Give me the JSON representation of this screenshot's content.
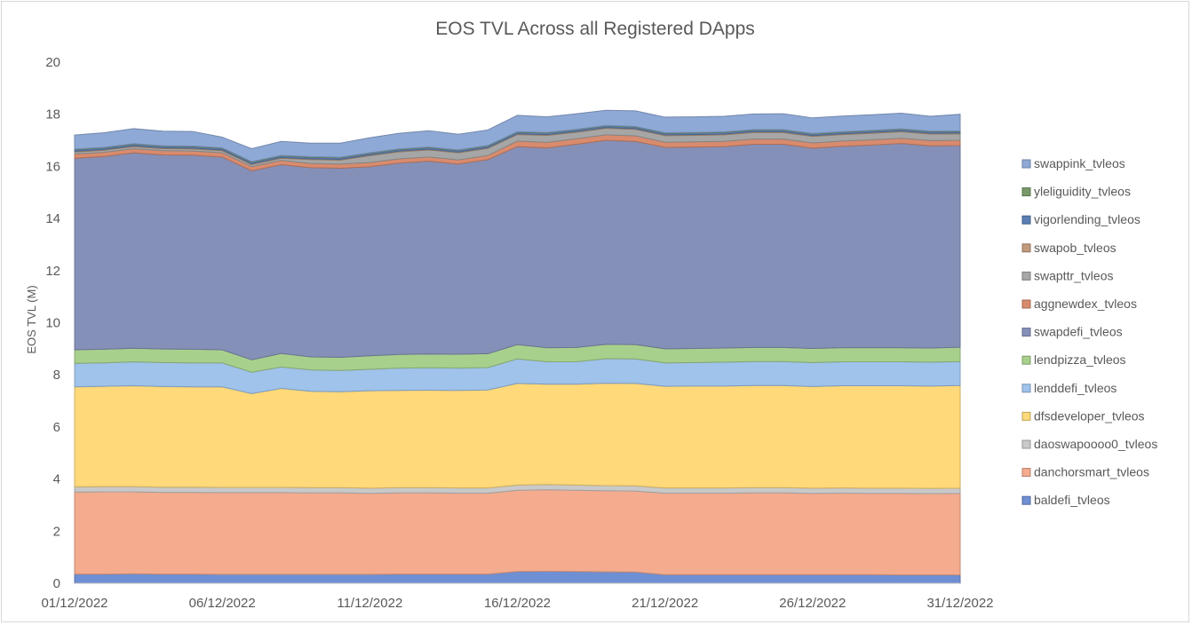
{
  "chart_data": {
    "type": "area",
    "stacked": true,
    "title": "EOS TVL Across all Registered DApps",
    "xlabel": "",
    "ylabel": "EOS TVL (M)",
    "ylim": [
      0,
      20
    ],
    "yticks": [
      0,
      2,
      4,
      6,
      8,
      10,
      12,
      14,
      16,
      18,
      20
    ],
    "x_tick_labels": [
      "01/12/2022",
      "06/12/2022",
      "11/12/2022",
      "16/12/2022",
      "21/12/2022",
      "26/12/2022",
      "31/12/2022"
    ],
    "x_tick_indices": [
      0,
      5,
      10,
      15,
      20,
      25,
      30
    ],
    "grid": false,
    "legend_position": "right",
    "legend_order": [
      "swappink_tvleos",
      "yleliguidity_tvleos",
      "vigorlending_tvleos",
      "swapob_tvleos",
      "swapttr_tvleos",
      "aggnewdex_tvleos",
      "swapdefi_tvleos",
      "lendpizza_tvleos",
      "lenddefi_tvleos",
      "dfsdeveloper_tvleos",
      "daoswapoooo0_tvleos",
      "danchorsmart_tvleos",
      "baldefi_tvleos"
    ],
    "x": [
      "01/12/2022",
      "02/12/2022",
      "03/12/2022",
      "04/12/2022",
      "05/12/2022",
      "06/12/2022",
      "07/12/2022",
      "08/12/2022",
      "09/12/2022",
      "10/12/2022",
      "11/12/2022",
      "12/12/2022",
      "13/12/2022",
      "14/12/2022",
      "15/12/2022",
      "16/12/2022",
      "17/12/2022",
      "18/12/2022",
      "19/12/2022",
      "20/12/2022",
      "21/12/2022",
      "22/12/2022",
      "23/12/2022",
      "24/12/2022",
      "25/12/2022",
      "26/12/2022",
      "27/12/2022",
      "28/12/2022",
      "29/12/2022",
      "30/12/2022",
      "31/12/2022"
    ],
    "series": [
      {
        "name": "baldefi_tvleos",
        "color": "#6f8fd4",
        "values": [
          0.35,
          0.35,
          0.36,
          0.35,
          0.35,
          0.34,
          0.34,
          0.34,
          0.34,
          0.34,
          0.34,
          0.35,
          0.35,
          0.35,
          0.35,
          0.45,
          0.46,
          0.45,
          0.44,
          0.43,
          0.33,
          0.33,
          0.33,
          0.33,
          0.33,
          0.33,
          0.33,
          0.33,
          0.32,
          0.32,
          0.32
        ]
      },
      {
        "name": "danchorsmart_tvleos",
        "color": "#f4ab8e",
        "values": [
          3.15,
          3.16,
          3.15,
          3.14,
          3.14,
          3.14,
          3.14,
          3.14,
          3.13,
          3.13,
          3.11,
          3.12,
          3.12,
          3.11,
          3.11,
          3.12,
          3.13,
          3.12,
          3.11,
          3.11,
          3.13,
          3.13,
          3.13,
          3.14,
          3.14,
          3.12,
          3.13,
          3.12,
          3.13,
          3.12,
          3.13
        ]
      },
      {
        "name": "daoswapoooo0_tvleos",
        "color": "#c9c9c9",
        "values": [
          0.2,
          0.2,
          0.2,
          0.2,
          0.2,
          0.2,
          0.2,
          0.2,
          0.2,
          0.2,
          0.2,
          0.2,
          0.2,
          0.2,
          0.2,
          0.2,
          0.2,
          0.2,
          0.2,
          0.2,
          0.2,
          0.2,
          0.2,
          0.2,
          0.2,
          0.2,
          0.2,
          0.2,
          0.2,
          0.2,
          0.2
        ]
      },
      {
        "name": "dfsdeveloper_tvleos",
        "color": "#ffd97a",
        "values": [
          3.84,
          3.85,
          3.87,
          3.86,
          3.85,
          3.86,
          3.6,
          3.8,
          3.7,
          3.68,
          3.74,
          3.73,
          3.74,
          3.74,
          3.76,
          3.9,
          3.85,
          3.87,
          3.93,
          3.93,
          3.9,
          3.91,
          3.91,
          3.92,
          3.92,
          3.9,
          3.92,
          3.93,
          3.93,
          3.93,
          3.94
        ]
      },
      {
        "name": "lenddefi_tvleos",
        "color": "#9fc3ea",
        "values": [
          0.9,
          0.9,
          0.92,
          0.92,
          0.92,
          0.92,
          0.82,
          0.82,
          0.82,
          0.82,
          0.82,
          0.86,
          0.86,
          0.86,
          0.86,
          0.94,
          0.86,
          0.86,
          0.94,
          0.94,
          0.9,
          0.9,
          0.92,
          0.92,
          0.92,
          0.92,
          0.92,
          0.92,
          0.92,
          0.92,
          0.92
        ]
      },
      {
        "name": "lendpizza_tvleos",
        "color": "#a8d08d",
        "values": [
          0.52,
          0.52,
          0.52,
          0.52,
          0.52,
          0.5,
          0.48,
          0.52,
          0.5,
          0.5,
          0.52,
          0.52,
          0.53,
          0.53,
          0.53,
          0.55,
          0.54,
          0.55,
          0.55,
          0.55,
          0.54,
          0.54,
          0.54,
          0.54,
          0.54,
          0.54,
          0.54,
          0.54,
          0.54,
          0.54,
          0.55
        ]
      },
      {
        "name": "swapdefi_tvleos",
        "color": "#8590b8",
        "values": [
          7.35,
          7.4,
          7.5,
          7.45,
          7.45,
          7.4,
          7.25,
          7.25,
          7.26,
          7.26,
          7.26,
          7.35,
          7.4,
          7.3,
          7.45,
          7.6,
          7.67,
          7.8,
          7.83,
          7.8,
          7.73,
          7.73,
          7.73,
          7.8,
          7.8,
          7.69,
          7.73,
          7.78,
          7.84,
          7.76,
          7.74
        ]
      },
      {
        "name": "aggnewdex_tvleos",
        "color": "#d98b6e",
        "values": [
          0.16,
          0.16,
          0.16,
          0.16,
          0.16,
          0.16,
          0.16,
          0.16,
          0.16,
          0.16,
          0.16,
          0.16,
          0.16,
          0.16,
          0.16,
          0.21,
          0.21,
          0.21,
          0.21,
          0.21,
          0.2,
          0.2,
          0.2,
          0.2,
          0.2,
          0.2,
          0.2,
          0.2,
          0.2,
          0.2,
          0.2
        ]
      },
      {
        "name": "swapttr_tvleos",
        "color": "#a6a6a6",
        "values": [
          0.08,
          0.08,
          0.08,
          0.08,
          0.08,
          0.08,
          0.08,
          0.08,
          0.15,
          0.15,
          0.26,
          0.27,
          0.27,
          0.27,
          0.27,
          0.25,
          0.27,
          0.25,
          0.25,
          0.25,
          0.25,
          0.25,
          0.25,
          0.25,
          0.25,
          0.25,
          0.25,
          0.25,
          0.25,
          0.25,
          0.25
        ]
      },
      {
        "name": "swapob_tvleos",
        "color": "#c19a7d",
        "values": [
          0.03,
          0.03,
          0.03,
          0.03,
          0.03,
          0.03,
          0.03,
          0.03,
          0.03,
          0.03,
          0.03,
          0.03,
          0.03,
          0.03,
          0.03,
          0.03,
          0.03,
          0.03,
          0.03,
          0.03,
          0.03,
          0.03,
          0.03,
          0.03,
          0.03,
          0.03,
          0.03,
          0.03,
          0.03,
          0.03,
          0.03
        ]
      },
      {
        "name": "vigorlending_tvleos",
        "color": "#5b7fb4",
        "values": [
          0.06,
          0.06,
          0.06,
          0.06,
          0.06,
          0.06,
          0.06,
          0.06,
          0.06,
          0.06,
          0.06,
          0.06,
          0.06,
          0.06,
          0.06,
          0.06,
          0.06,
          0.06,
          0.06,
          0.06,
          0.06,
          0.06,
          0.06,
          0.06,
          0.06,
          0.06,
          0.06,
          0.06,
          0.06,
          0.06,
          0.06
        ]
      },
      {
        "name": "yleliguidity_tvleos",
        "color": "#789a6a",
        "values": [
          0.02,
          0.02,
          0.02,
          0.02,
          0.02,
          0.02,
          0.02,
          0.02,
          0.02,
          0.02,
          0.02,
          0.02,
          0.02,
          0.02,
          0.02,
          0.02,
          0.02,
          0.02,
          0.02,
          0.02,
          0.02,
          0.02,
          0.02,
          0.02,
          0.02,
          0.02,
          0.02,
          0.02,
          0.02,
          0.02,
          0.02
        ]
      },
      {
        "name": "swappink_tvleos",
        "color": "#8ea9d6",
        "values": [
          0.54,
          0.56,
          0.58,
          0.56,
          0.56,
          0.41,
          0.5,
          0.54,
          0.52,
          0.54,
          0.58,
          0.6,
          0.63,
          0.6,
          0.6,
          0.63,
          0.6,
          0.6,
          0.58,
          0.6,
          0.6,
          0.6,
          0.6,
          0.6,
          0.61,
          0.6,
          0.6,
          0.6,
          0.6,
          0.57,
          0.64
        ]
      }
    ]
  }
}
